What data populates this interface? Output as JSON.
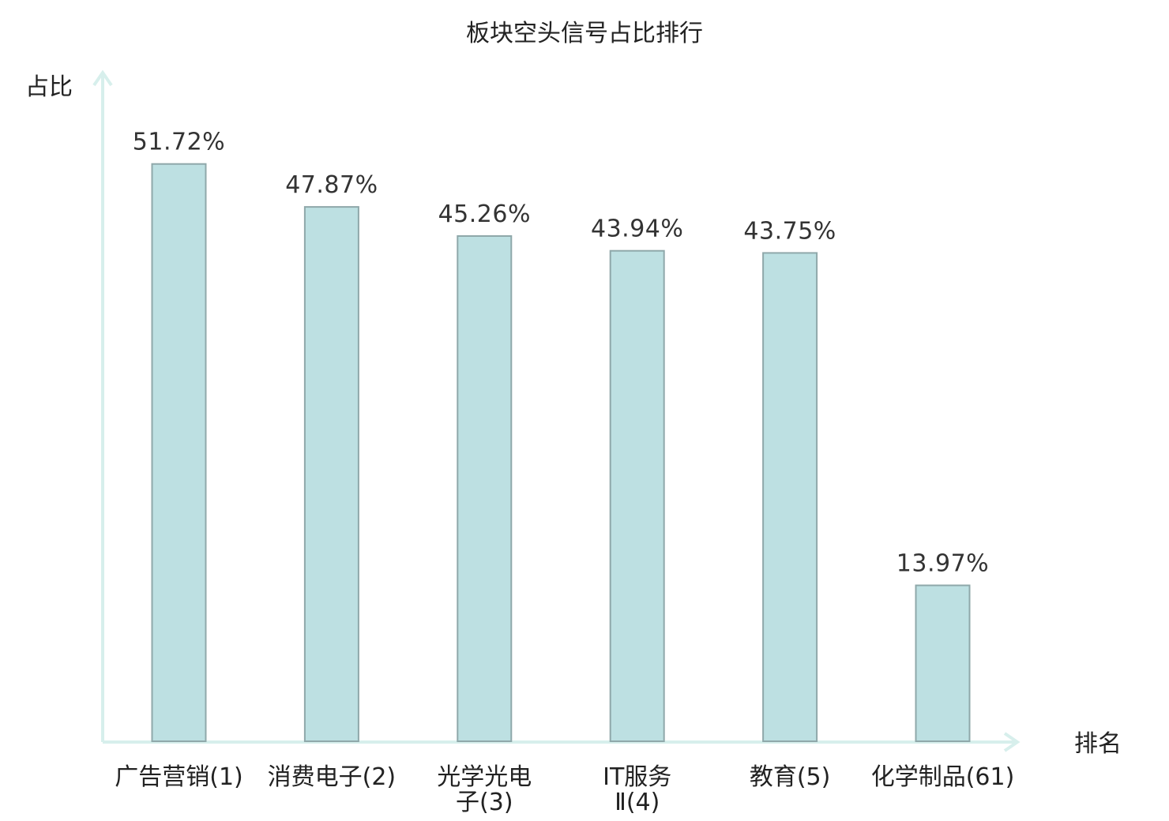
{
  "chart_data": {
    "type": "bar",
    "title": "板块空头信号占比排行",
    "ylabel": "占比",
    "xlabel": "排名",
    "categories": [
      [
        "广告营销(1)"
      ],
      [
        "消费电子(2)"
      ],
      [
        "光学光电",
        "子(3)"
      ],
      [
        "IT服务",
        "Ⅱ(4)"
      ],
      [
        "教育(5)"
      ],
      [
        "化学制品(61)"
      ]
    ],
    "values": [
      51.72,
      47.87,
      45.26,
      43.94,
      43.75,
      13.97
    ],
    "value_labels": [
      "51.72%",
      "47.87%",
      "45.26%",
      "43.94%",
      "43.75%",
      "13.97%"
    ],
    "highlight_index": 5,
    "ylim": [
      0,
      60
    ],
    "grid": false,
    "colors": {
      "bar_fill": "#bde0e2",
      "bar_stroke": "#8fa8aa",
      "axis": "#d7efec",
      "text": "#222222",
      "value_text": "#333333",
      "highlight": "#e60000"
    }
  }
}
